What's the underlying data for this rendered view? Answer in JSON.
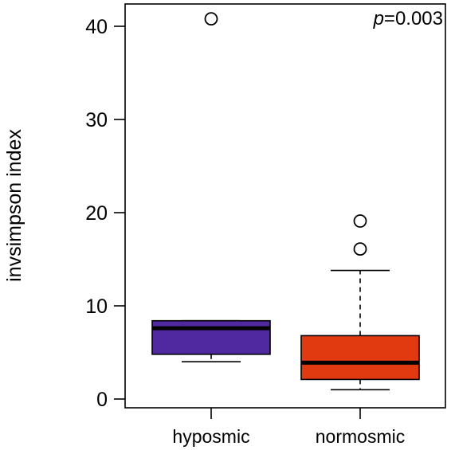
{
  "chart_data": {
    "type": "boxplot",
    "ylabel": "invsimpson index",
    "ylim": [
      0,
      40
    ],
    "yticks": [
      0,
      10,
      20,
      30,
      40
    ],
    "categories": [
      "hyposmic",
      "normosmic"
    ],
    "boxes": [
      {
        "category": "hyposmic",
        "color": "#5028A0",
        "whisker_low": 4.0,
        "q1": 4.8,
        "median": 7.6,
        "q3": 8.4,
        "whisker_high": 8.4,
        "outliers": [
          40.8
        ]
      },
      {
        "category": "normosmic",
        "color": "#E23A10",
        "whisker_low": 1.0,
        "q1": 2.1,
        "median": 3.9,
        "q3": 6.8,
        "whisker_high": 13.8,
        "outliers": [
          16.1,
          19.1
        ]
      }
    ],
    "annotation": {
      "italic_part": "p",
      "rest": "=0.003"
    }
  }
}
